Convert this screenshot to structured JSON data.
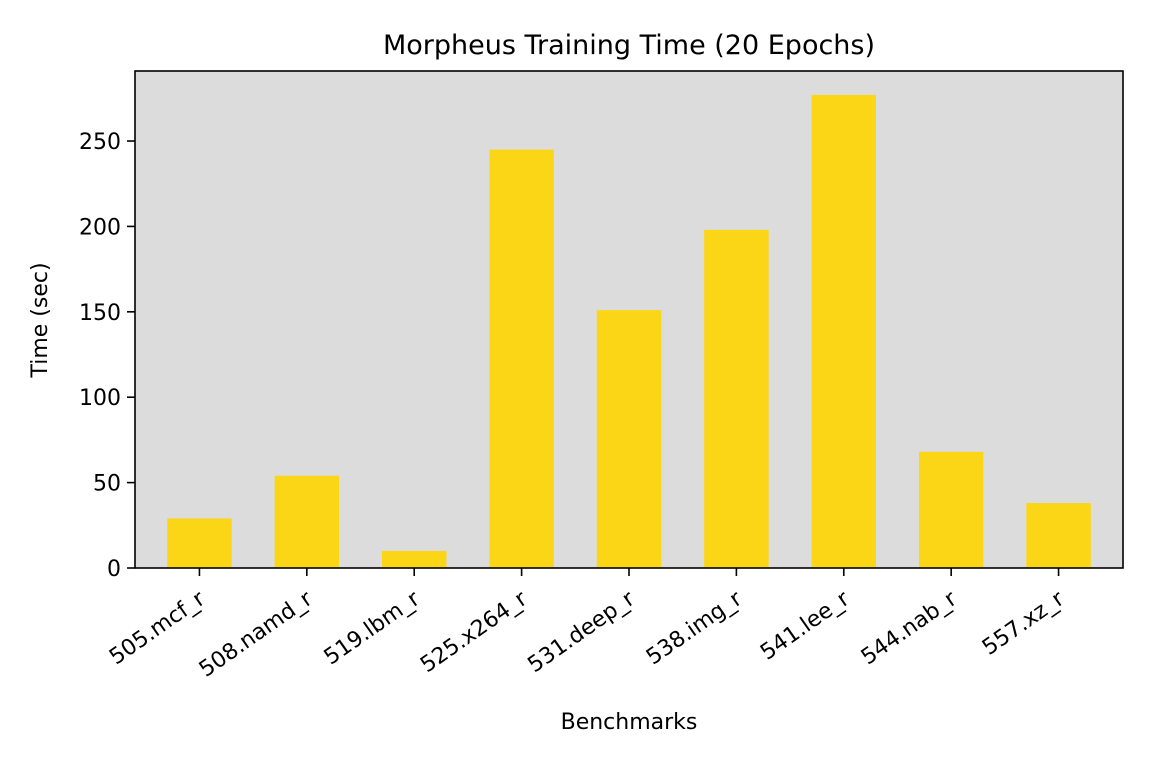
{
  "chart_data": {
    "type": "bar",
    "title": "Morpheus Training Time (20 Epochs)",
    "xlabel": "Benchmarks",
    "ylabel": "Time (sec)",
    "categories": [
      "505.mcf_r",
      "508.namd_r",
      "519.lbm_r",
      "525.x264_r",
      "531.deep_r",
      "538.img_r",
      "541.lee_r",
      "544.nab_r",
      "557.xz_r"
    ],
    "values": [
      29,
      54,
      10,
      245,
      151,
      198,
      277,
      68,
      38
    ],
    "ylim": [
      0,
      291
    ],
    "yticks": [
      0,
      50,
      100,
      150,
      200,
      250
    ],
    "grid": false,
    "colors": {
      "bar": "#fbd616",
      "plot_background": "#dcdcdc",
      "axes": "#000000"
    }
  }
}
